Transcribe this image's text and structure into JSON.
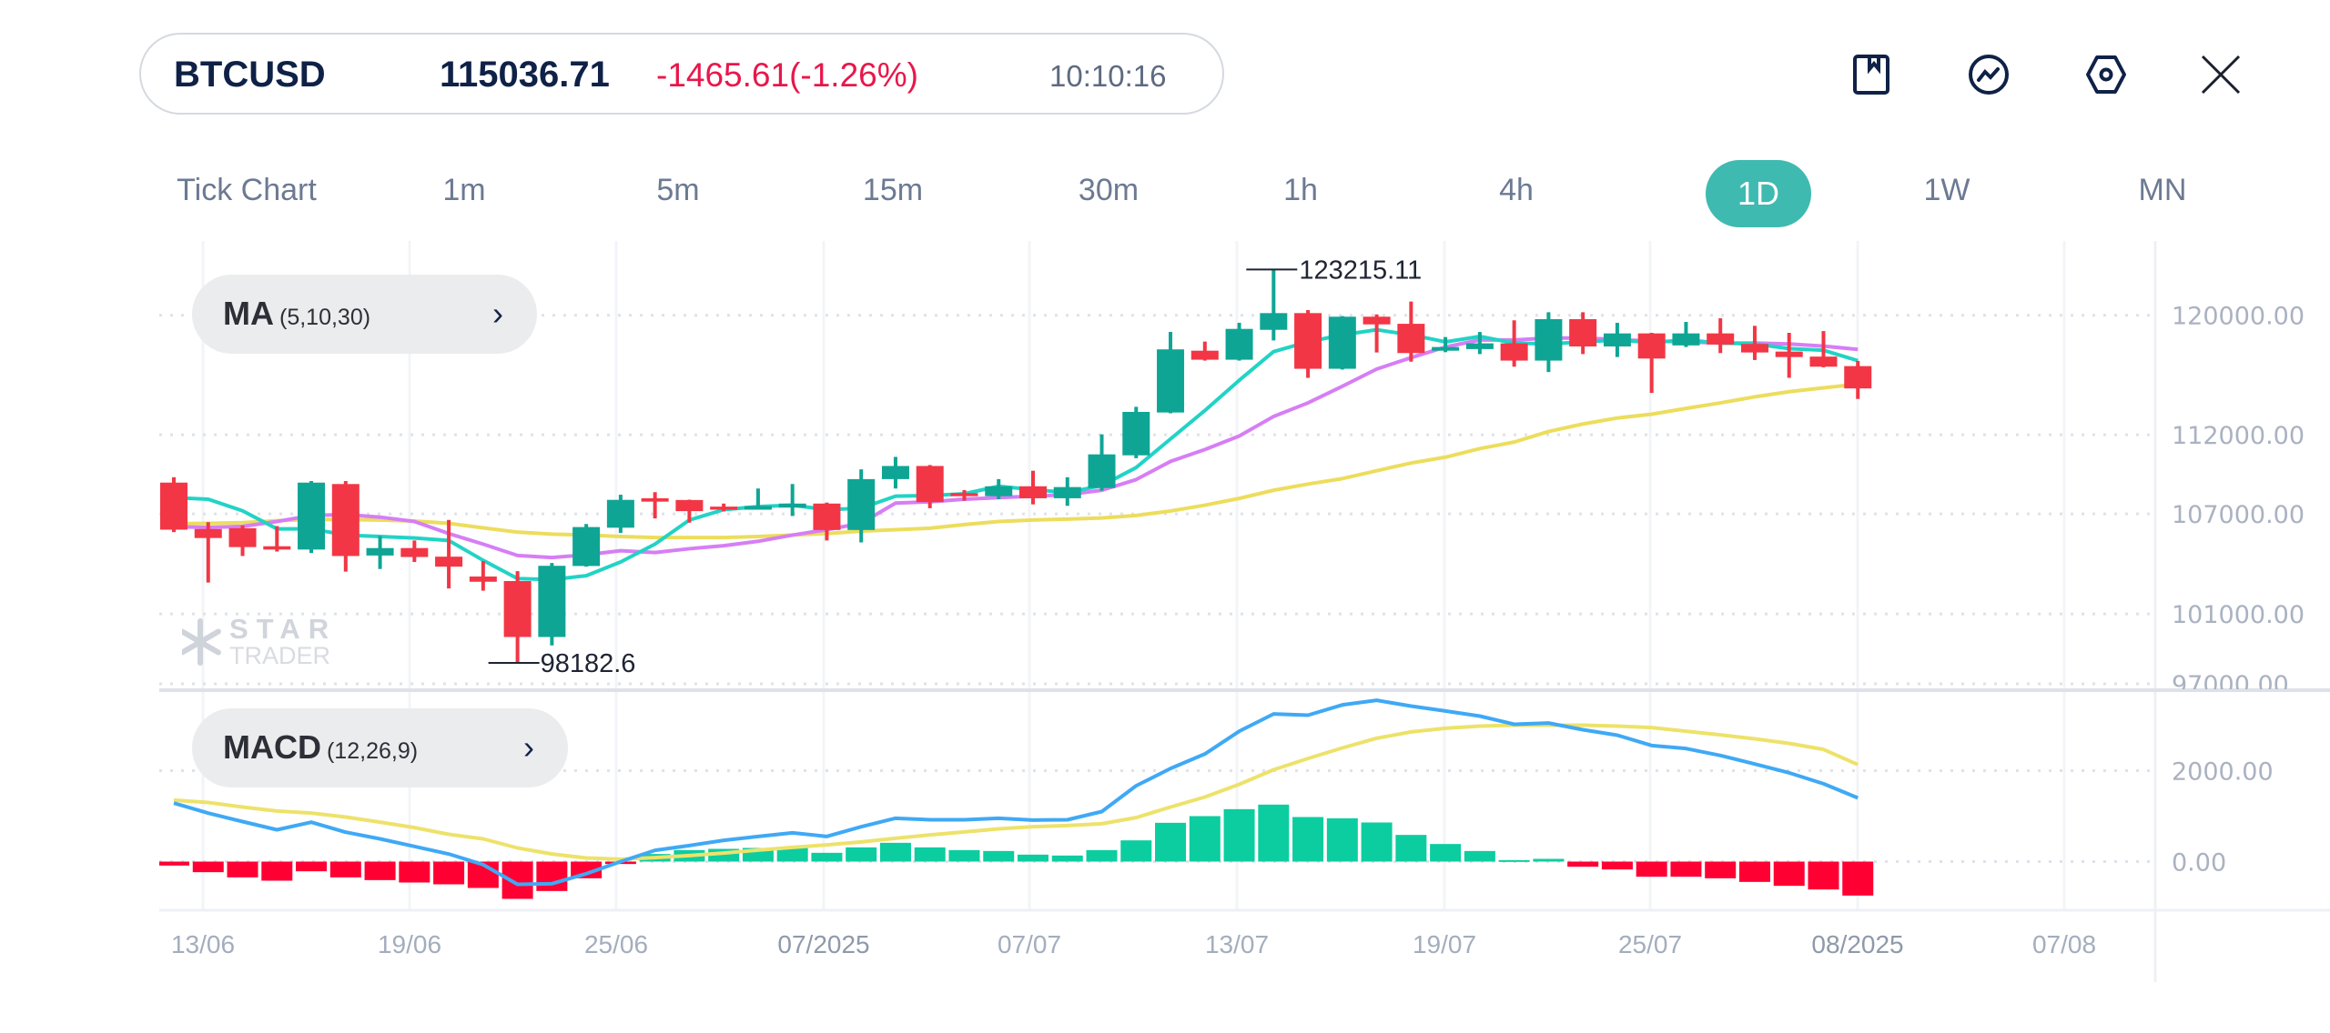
{
  "header": {
    "symbol": "BTCUSD",
    "price": "115036.71",
    "change": "-1465.61(-1.26%)",
    "time": "10:10:16",
    "icons": [
      "bookmark-icon",
      "indicator-chart-icon",
      "settings-hex-icon",
      "close-icon"
    ]
  },
  "timeframes": [
    "Tick Chart",
    "1m",
    "5m",
    "15m",
    "30m",
    "1h",
    "4h",
    "1D",
    "1W",
    "MN"
  ],
  "active_timeframe": "1D",
  "indicators": {
    "ma": {
      "name": "MA",
      "params": "(5,10,30)"
    },
    "macd": {
      "name": "MACD",
      "params": "(12,26,9)"
    }
  },
  "watermark": {
    "line1": "STAR",
    "line2": "TRADER"
  },
  "colors": {
    "up": "#0fa595",
    "down": "#f23645",
    "hist_up": "#0ccda0",
    "hist_down": "#ff0033",
    "ma5": "#22d3c5",
    "ma10": "#d67ef5",
    "ma30": "#ecdd5c",
    "dif": "#3fa9f5",
    "dea": "#ede26a",
    "accent": "#3fbab0"
  },
  "chart_data": {
    "type": "candlestick",
    "symbol": "BTCUSD",
    "interval": "1D",
    "price_axis": {
      "ticks": [
        120000,
        112000,
        107000,
        101000,
        97000
      ],
      "labels": [
        "120000.00",
        "112000.00",
        "107000.00",
        "101000.00",
        "97000.00"
      ],
      "scale": "log"
    },
    "macd_axis": {
      "ticks": [
        2000,
        0
      ],
      "labels": [
        "2000.00",
        "0.00"
      ]
    },
    "x_ticks": [
      "13/06",
      "19/06",
      "25/06",
      "07/2025",
      "07/07",
      "13/07",
      "19/07",
      "25/07",
      "08/2025",
      "07/08"
    ],
    "annotations": {
      "high": {
        "index": 32,
        "value": 123215.11,
        "label": "123215.11"
      },
      "low": {
        "index": 10,
        "value": 98182.6,
        "label": "98182.6"
      }
    },
    "ohlc": [
      [
        108950,
        109290,
        105880,
        106030
      ],
      [
        106070,
        106490,
        102840,
        105520
      ],
      [
        106120,
        106290,
        104430,
        104970
      ],
      [
        105020,
        106250,
        104700,
        104820
      ],
      [
        104820,
        109050,
        104610,
        108950
      ],
      [
        108860,
        109050,
        103490,
        104430
      ],
      [
        104460,
        105640,
        103650,
        104910
      ],
      [
        104910,
        105370,
        104070,
        104370
      ],
      [
        104390,
        106630,
        102490,
        103790
      ],
      [
        103200,
        104120,
        102360,
        102890
      ],
      [
        102930,
        103520,
        98182.6,
        99660
      ],
      [
        99660,
        104010,
        99180,
        103840
      ],
      [
        103830,
        106380,
        103790,
        106190
      ],
      [
        106150,
        108190,
        105830,
        107870
      ],
      [
        107970,
        108350,
        106720,
        107760
      ],
      [
        107860,
        107880,
        106460,
        107170
      ],
      [
        107450,
        107640,
        107170,
        107260
      ],
      [
        107260,
        108580,
        107260,
        107490
      ],
      [
        107390,
        108860,
        106870,
        107640
      ],
      [
        107640,
        107700,
        105370,
        106010
      ],
      [
        106010,
        109790,
        105250,
        109170
      ],
      [
        109170,
        110580,
        108580,
        110000
      ],
      [
        110000,
        110060,
        107350,
        107730
      ],
      [
        108290,
        108480,
        107820,
        108100
      ],
      [
        108100,
        109170,
        107910,
        108720
      ],
      [
        108720,
        109700,
        107590,
        107970
      ],
      [
        107970,
        109290,
        107500,
        108670
      ],
      [
        108610,
        112030,
        108440,
        110740
      ],
      [
        110680,
        113820,
        110500,
        113490
      ],
      [
        113450,
        118850,
        113400,
        117660
      ],
      [
        117570,
        118190,
        116900,
        116960
      ],
      [
        116960,
        119480,
        116900,
        119060
      ],
      [
        118995,
        123215.11,
        118270,
        120150
      ],
      [
        120150,
        120360,
        115740,
        116350
      ],
      [
        116350,
        119940,
        116300,
        119900
      ],
      [
        119900,
        120060,
        117450,
        119370
      ],
      [
        119410,
        120950,
        116830,
        117410
      ],
      [
        117570,
        118500,
        117470,
        117820
      ],
      [
        117680,
        118850,
        117340,
        118070
      ],
      [
        118070,
        119650,
        116490,
        116900
      ],
      [
        116900,
        120210,
        116130,
        119730
      ],
      [
        119730,
        120210,
        117340,
        117860
      ],
      [
        117860,
        119480,
        117140,
        118750
      ],
      [
        118750,
        118790,
        114740,
        117040
      ],
      [
        117930,
        119540,
        117820,
        118750
      ],
      [
        118750,
        119790,
        117410,
        117990
      ],
      [
        118030,
        119270,
        116940,
        117450
      ],
      [
        117510,
        118790,
        115740,
        117140
      ],
      [
        117170,
        118910,
        116450,
        116490
      ],
      [
        116530,
        116880,
        114340,
        115036.71
      ]
    ],
    "ma5": [
      108010,
      107910,
      107190,
      106080,
      106080,
      105700,
      105610,
      105520,
      105370,
      104170,
      103080,
      103020,
      103250,
      104070,
      105150,
      106620,
      107260,
      107450,
      107540,
      107260,
      107350,
      108100,
      108140,
      108250,
      108720,
      108510,
      108330,
      108760,
      109900,
      111730,
      113580,
      115580,
      117510,
      118170,
      118650,
      119000,
      118650,
      118170,
      118540,
      118090,
      118030,
      118170,
      118300,
      118130,
      118300,
      118090,
      118030,
      117710,
      117600,
      116895
    ],
    "ma10": [
      106210,
      106170,
      106230,
      106530,
      106900,
      106960,
      106800,
      106530,
      105790,
      105150,
      104460,
      104340,
      104500,
      104750,
      104640,
      104870,
      105050,
      105320,
      105700,
      106030,
      106420,
      107670,
      107750,
      107910,
      108010,
      108100,
      108190,
      108470,
      109140,
      110290,
      111050,
      111920,
      113190,
      114080,
      115180,
      116330,
      117100,
      117820,
      118300,
      118300,
      118430,
      118430,
      118330,
      118230,
      118170,
      118090,
      118090,
      118030,
      117880,
      117660
    ],
    "ma30": [
      106390,
      106420,
      106460,
      106580,
      106650,
      106650,
      106620,
      106560,
      106420,
      106140,
      105880,
      105760,
      105700,
      105610,
      105550,
      105550,
      105550,
      105610,
      105700,
      105790,
      105940,
      106030,
      106120,
      106340,
      106530,
      106620,
      106680,
      106750,
      106900,
      107180,
      107540,
      107960,
      108470,
      108860,
      109200,
      109700,
      110190,
      110560,
      111110,
      111530,
      112210,
      112700,
      113090,
      113340,
      113720,
      114080,
      114480,
      114820,
      115075,
      115320
    ],
    "macd_hist": [
      -87,
      -233,
      -347,
      -420,
      -213,
      -347,
      -407,
      -460,
      -500,
      -580,
      -820,
      -647,
      -367,
      -53,
      167,
      253,
      280,
      300,
      320,
      193,
      313,
      413,
      313,
      253,
      233,
      153,
      133,
      253,
      467,
      853,
      1000,
      1153,
      1253,
      980,
      953,
      860,
      587,
      387,
      233,
      33,
      60,
      -113,
      -173,
      -333,
      -333,
      -367,
      -447,
      -533,
      -613,
      -747
    ],
    "macd_dif": [
      1287,
      1067,
      880,
      700,
      867,
      647,
      500,
      333,
      167,
      -67,
      -500,
      -487,
      -267,
      0,
      247,
      353,
      467,
      553,
      633,
      553,
      767,
      953,
      920,
      920,
      953,
      913,
      920,
      1100,
      1667,
      2047,
      2367,
      2867,
      3247,
      3220,
      3447,
      3547,
      3420,
      3313,
      3200,
      3020,
      3047,
      2900,
      2780,
      2553,
      2487,
      2333,
      2147,
      1953,
      1713,
      1400
    ],
    "macd_dea": [
      1353,
      1300,
      1200,
      1113,
      1067,
      980,
      867,
      747,
      600,
      500,
      300,
      167,
      80,
      53,
      87,
      133,
      187,
      253,
      313,
      367,
      433,
      513,
      587,
      653,
      720,
      767,
      793,
      833,
      967,
      1200,
      1420,
      1700,
      2020,
      2267,
      2500,
      2713,
      2853,
      2933,
      2980,
      3000,
      3000,
      3000,
      2980,
      2947,
      2867,
      2787,
      2700,
      2600,
      2467,
      2133
    ]
  }
}
